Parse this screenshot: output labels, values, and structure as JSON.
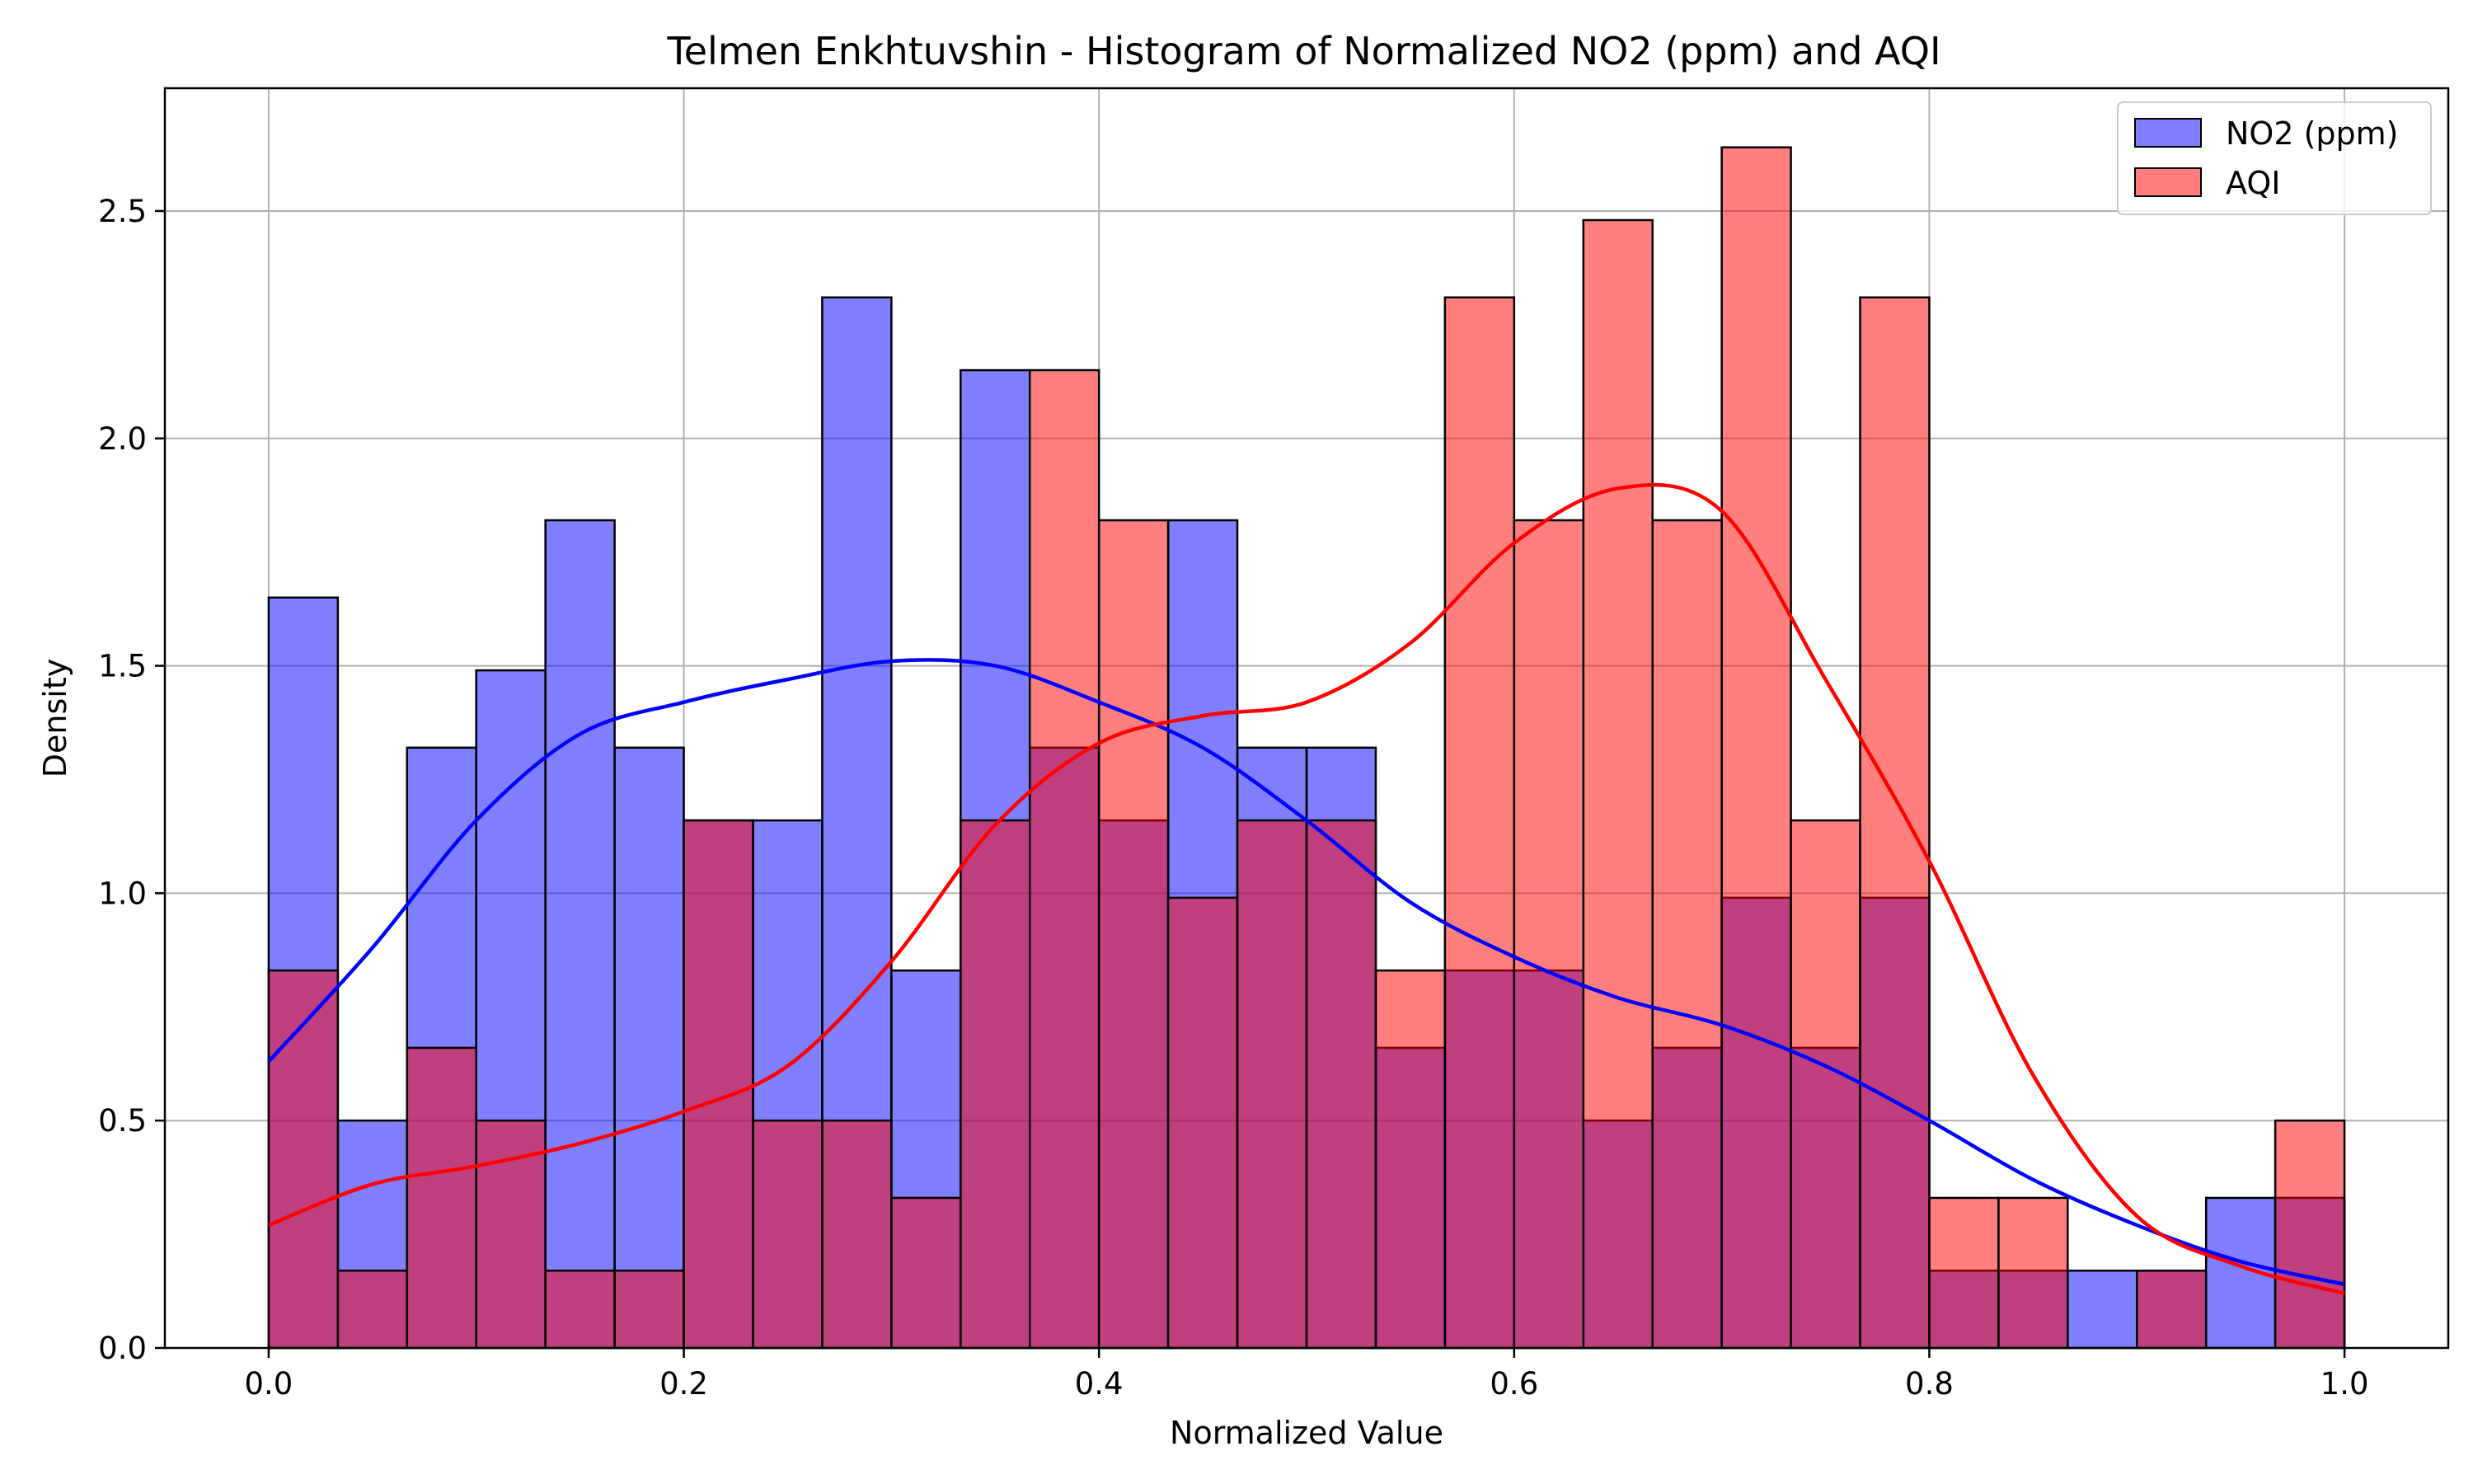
{
  "chart_data": {
    "type": "bar",
    "title": "Telmen Enkhtuvshin - Histogram of Normalized NO2 (ppm) and AQI",
    "xlabel": "Normalized Value",
    "ylabel": "Density",
    "xlim": [
      -0.05,
      1.05
    ],
    "ylim": [
      0,
      2.77
    ],
    "xticks": [
      0.0,
      0.2,
      0.4,
      0.6,
      0.8,
      1.0
    ],
    "xtick_labels": [
      "0.0",
      "0.2",
      "0.4",
      "0.6",
      "0.8",
      "1.0"
    ],
    "yticks": [
      0.0,
      0.5,
      1.0,
      1.5,
      2.0,
      2.5
    ],
    "ytick_labels": [
      "0.0",
      "0.5",
      "1.0",
      "1.5",
      "2.0",
      "2.5"
    ],
    "grid": true,
    "legend_position": "top-right",
    "bins": {
      "start": 0.0,
      "end": 1.0,
      "count": 30
    },
    "series": [
      {
        "name": "NO2 (ppm)",
        "color": "#0000ff",
        "fill_opacity": 0.5,
        "values": [
          1.65,
          0.5,
          1.32,
          1.49,
          1.82,
          1.32,
          1.16,
          1.16,
          2.31,
          0.83,
          2.15,
          1.32,
          1.16,
          1.82,
          1.32,
          1.32,
          0.66,
          0.83,
          0.83,
          0.5,
          0.66,
          0.99,
          0.66,
          0.99,
          0.17,
          0.17,
          0.17,
          0.17,
          0.33,
          0.33
        ],
        "kde": {
          "x": [
            0.0,
            0.05,
            0.1,
            0.15,
            0.2,
            0.25,
            0.3,
            0.35,
            0.4,
            0.45,
            0.5,
            0.55,
            0.6,
            0.65,
            0.7,
            0.75,
            0.8,
            0.85,
            0.9,
            0.95,
            1.0
          ],
          "y": [
            0.63,
            0.88,
            1.16,
            1.35,
            1.42,
            1.47,
            1.51,
            1.5,
            1.42,
            1.32,
            1.16,
            0.98,
            0.86,
            0.77,
            0.71,
            0.62,
            0.5,
            0.37,
            0.27,
            0.19,
            0.14
          ]
        }
      },
      {
        "name": "AQI",
        "color": "#ff0000",
        "fill_opacity": 0.5,
        "values": [
          0.83,
          0.17,
          0.66,
          0.5,
          0.17,
          0.17,
          1.16,
          0.5,
          0.5,
          0.33,
          1.16,
          2.15,
          1.82,
          0.99,
          1.16,
          1.16,
          0.83,
          2.31,
          1.82,
          2.48,
          1.82,
          2.64,
          1.16,
          2.31,
          0.33,
          0.33,
          0.0,
          0.17,
          0.0,
          0.5
        ],
        "kde": {
          "x": [
            0.0,
            0.05,
            0.1,
            0.15,
            0.2,
            0.25,
            0.3,
            0.35,
            0.4,
            0.45,
            0.5,
            0.55,
            0.6,
            0.65,
            0.7,
            0.75,
            0.8,
            0.85,
            0.9,
            0.95,
            1.0
          ],
          "y": [
            0.27,
            0.36,
            0.4,
            0.45,
            0.52,
            0.62,
            0.85,
            1.15,
            1.33,
            1.39,
            1.42,
            1.55,
            1.77,
            1.89,
            1.84,
            1.47,
            1.07,
            0.6,
            0.29,
            0.18,
            0.12
          ]
        }
      }
    ]
  }
}
